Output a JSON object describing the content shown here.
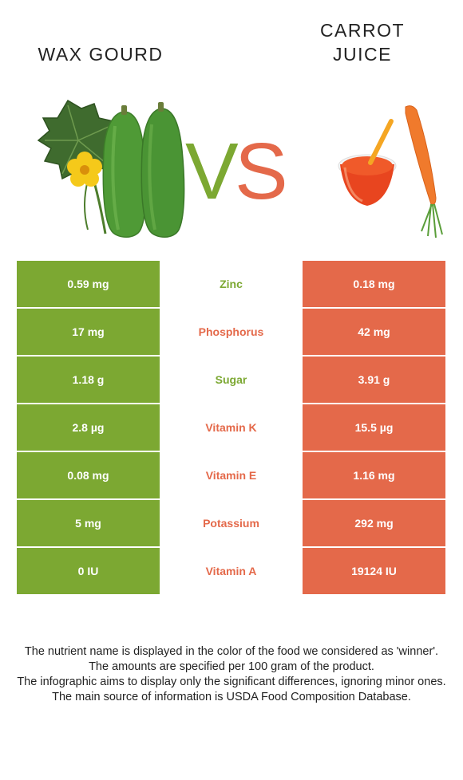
{
  "colors": {
    "left_food": "#7ca832",
    "right_food": "#e4694a"
  },
  "left_food": {
    "name": "WAX GOURD"
  },
  "right_food": {
    "name_line1": "CARROT",
    "name_line2": "JUICE"
  },
  "vs": {
    "v": "V",
    "s": "S"
  },
  "rows": [
    {
      "left": "0.59 mg",
      "nutrient": "Zinc",
      "right": "0.18 mg",
      "winner": "left"
    },
    {
      "left": "17 mg",
      "nutrient": "Phosphorus",
      "right": "42 mg",
      "winner": "right"
    },
    {
      "left": "1.18 g",
      "nutrient": "Sugar",
      "right": "3.91 g",
      "winner": "left"
    },
    {
      "left": "2.8 µg",
      "nutrient": "Vitamin K",
      "right": "15.5 µg",
      "winner": "right"
    },
    {
      "left": "0.08 mg",
      "nutrient": "Vitamin E",
      "right": "1.16 mg",
      "winner": "right"
    },
    {
      "left": "5 mg",
      "nutrient": "Potassium",
      "right": "292 mg",
      "winner": "right"
    },
    {
      "left": "0 IU",
      "nutrient": "Vitamin A",
      "right": "19124 IU",
      "winner": "right"
    }
  ],
  "footnote": {
    "line1": "The nutrient name is displayed in the color of the food we considered as 'winner'.",
    "line2": "The amounts are specified per 100 gram of the product.",
    "line3": "The infographic aims to display only the significant differences, ignoring minor ones.",
    "line4": "The main source of information is USDA Food Composition Database."
  }
}
